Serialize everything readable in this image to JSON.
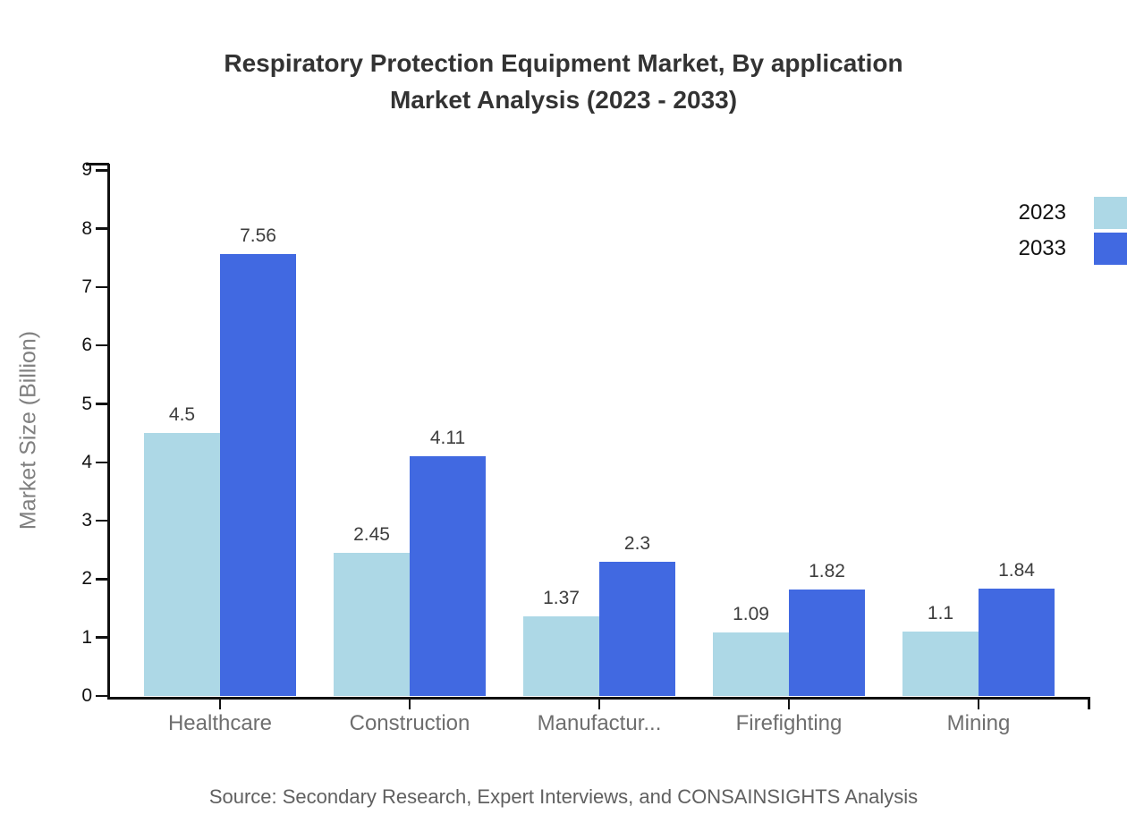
{
  "title": {
    "line1": "Respiratory Protection Equipment Market, By application",
    "line2": "Market Analysis (2023 - 2033)"
  },
  "source": {
    "text": "Source: Secondary Research, Expert Interviews, and CONSAINSIGHTS Analysis"
  },
  "colors": {
    "series_2023": "#ADD8E6",
    "series_2033": "#4169E1",
    "axis": "#111111",
    "title_text": "#333333",
    "category_labels": "#6e6e6e",
    "value_labels": "#3d3d3d",
    "y_axis_title": "#808080",
    "source_text": "#606060"
  },
  "chart_data": {
    "type": "bar",
    "title": "Respiratory Protection Equipment Market, By application Market Analysis (2023 - 2033)",
    "categories": [
      "Healthcare",
      "Construction",
      "Manufactur...",
      "Firefighting",
      "Mining"
    ],
    "series": [
      {
        "name": "2023",
        "color": "#ADD8E6",
        "values": [
          4.5,
          2.45,
          1.37,
          1.09,
          1.1
        ]
      },
      {
        "name": "2033",
        "color": "#4169E1",
        "values": [
          7.56,
          4.11,
          2.3,
          1.82,
          1.84
        ]
      }
    ],
    "xlabel": "",
    "ylabel": "Market Size (Billion)",
    "ylim": [
      0,
      9
    ],
    "yticks": [
      0,
      1,
      2,
      3,
      4,
      5,
      6,
      7,
      8,
      9
    ],
    "grid": false,
    "value_labels": true,
    "legend_position": "top-right"
  }
}
